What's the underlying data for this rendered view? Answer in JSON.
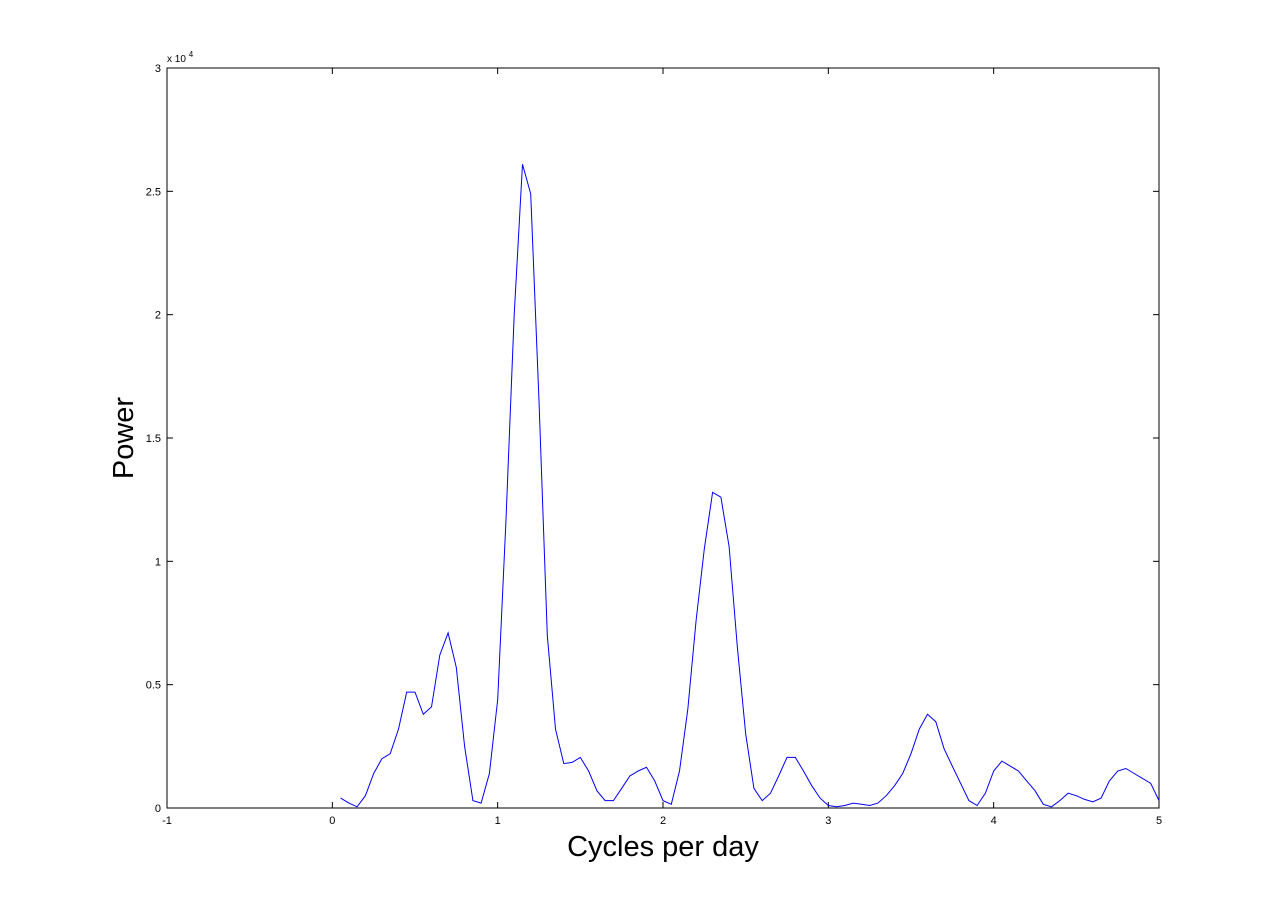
{
  "chart_data": {
    "type": "line",
    "title": "",
    "xlabel": "Cycles per day",
    "ylabel": "Power",
    "xlim": [
      -1,
      5
    ],
    "ylim": [
      0,
      30000
    ],
    "x_ticks": [
      -1,
      0,
      1,
      2,
      3,
      4,
      5
    ],
    "x_tick_labels": [
      "-1",
      "0",
      "1",
      "2",
      "3",
      "4",
      "5"
    ],
    "y_ticks": [
      0,
      5000,
      10000,
      15000,
      20000,
      25000,
      30000
    ],
    "y_tick_labels": [
      "0",
      "0.5",
      "1",
      "1.5",
      "2",
      "2.5",
      "3"
    ],
    "y_multiplier_base": "x 10",
    "y_multiplier_exp": "4",
    "grid": false,
    "line_color": "#0000ff",
    "series": [
      {
        "x": [
          0.05,
          0.1,
          0.15,
          0.2,
          0.25,
          0.3,
          0.35,
          0.4,
          0.45,
          0.5,
          0.55,
          0.6,
          0.65,
          0.7,
          0.75,
          0.8,
          0.85,
          0.9,
          0.95,
          1.0,
          1.05,
          1.1,
          1.15,
          1.2,
          1.25,
          1.3,
          1.35,
          1.4,
          1.45,
          1.5,
          1.55,
          1.6,
          1.65,
          1.7,
          1.75,
          1.8,
          1.85,
          1.9,
          1.95,
          2.0,
          2.05,
          2.1,
          2.15,
          2.2,
          2.25,
          2.3,
          2.35,
          2.4,
          2.45,
          2.5,
          2.55,
          2.6,
          2.65,
          2.7,
          2.75,
          2.8,
          2.85,
          2.9,
          2.95,
          3.0,
          3.05,
          3.1,
          3.15,
          3.2,
          3.25,
          3.3,
          3.35,
          3.4,
          3.45,
          3.5,
          3.55,
          3.6,
          3.65,
          3.7,
          3.75,
          3.8,
          3.85,
          3.9,
          3.95,
          4.0,
          4.05,
          4.1,
          4.15,
          4.2,
          4.25,
          4.3,
          4.35,
          4.4,
          4.45,
          4.5,
          4.55,
          4.6,
          4.65,
          4.7,
          4.75,
          4.8,
          4.85,
          4.9,
          4.95,
          5.0
        ],
        "values": [
          400,
          200,
          50,
          500,
          1400,
          2000,
          2200,
          3200,
          4700,
          4700,
          3800,
          4100,
          6200,
          7100,
          5700,
          2500,
          300,
          200,
          1400,
          4400,
          11600,
          20000,
          26100,
          24900,
          16500,
          7000,
          3200,
          1800,
          1850,
          2050,
          1500,
          700,
          300,
          300,
          800,
          1300,
          1500,
          1650,
          1100,
          300,
          150,
          1500,
          4000,
          7600,
          10500,
          12800,
          12600,
          10600,
          6500,
          3000,
          800,
          300,
          600,
          1300,
          2050,
          2050,
          1500,
          900,
          400,
          100,
          50,
          100,
          200,
          150,
          100,
          200,
          500,
          900,
          1400,
          2200,
          3200,
          3800,
          3500,
          2400,
          1700,
          1000,
          300,
          100,
          600,
          1500,
          1900,
          1700,
          1500,
          1100,
          700,
          150,
          50,
          300,
          600,
          500,
          350,
          250,
          400,
          1100,
          1500,
          1600,
          1400,
          1200,
          1000,
          300
        ]
      }
    ]
  }
}
